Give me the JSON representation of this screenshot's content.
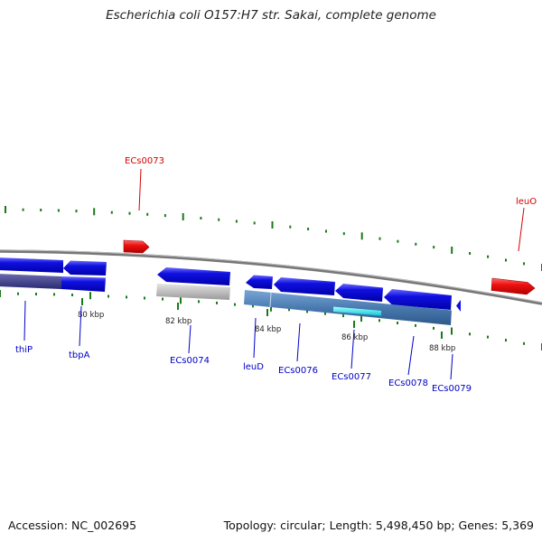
{
  "title": "Escherichia coli O157:H7 str. Sakai, complete genome",
  "footer": {
    "accession": "Accession: NC_002695",
    "summary": "Topology: circular; Length: 5,498,450 bp; Genes: 5,369"
  },
  "colors": {
    "top_label": "#d40000",
    "bottom_label": "#0000c8",
    "gene_top": "#ee1111",
    "gene_bottom": "#1010e0",
    "gene_gray": "#b8b8b8",
    "gene_steel": "#4a7ab0",
    "gene_cyan": "#20e8f0",
    "gene_slate": "#3d3d8a",
    "tick_green": "#1a7a1a",
    "backbone": "#777777"
  },
  "tick_labels": {
    "kbp80": "80 kbp",
    "kbp82": "82 kbp",
    "kbp84": "84 kbp",
    "kbp86": "86 kbp",
    "kbp88": "88 kbp"
  },
  "top_genes": [
    {
      "id": "ECs0073",
      "label": "ECs0073"
    },
    {
      "id": "leuO",
      "label": "leuO"
    }
  ],
  "bottom_genes": [
    {
      "id": "thiP",
      "label": "thiP"
    },
    {
      "id": "tbpA",
      "label": "tbpA"
    },
    {
      "id": "ECs0074",
      "label": "ECs0074"
    },
    {
      "id": "leuD",
      "label": "leuD"
    },
    {
      "id": "ECs0076",
      "label": "ECs0076"
    },
    {
      "id": "ECs0077",
      "label": "ECs0077"
    },
    {
      "id": "ECs0078",
      "label": "ECs0078"
    },
    {
      "id": "ECs0079",
      "label": "ECs0079"
    }
  ]
}
